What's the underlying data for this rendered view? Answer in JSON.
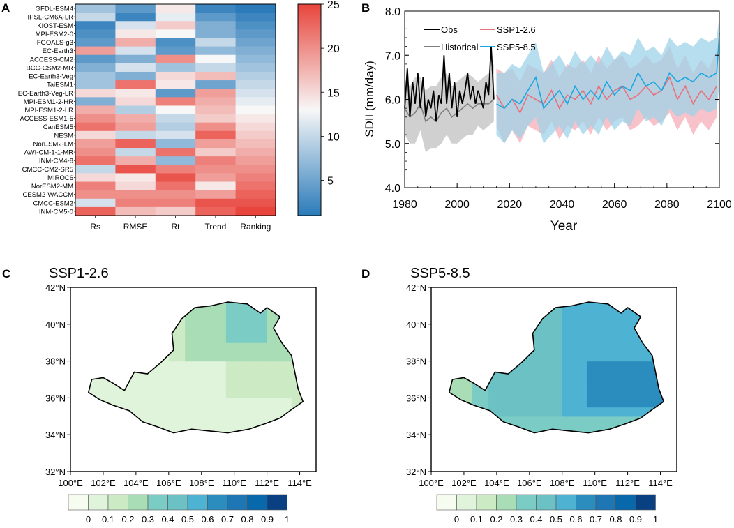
{
  "panels": {
    "A": {
      "letter": "A"
    },
    "B": {
      "letter": "B"
    },
    "C": {
      "letter": "C",
      "title": "SSP1-2.6"
    },
    "D": {
      "letter": "D",
      "title": "SSP5-8.5"
    }
  },
  "colors": {
    "heat_low": "#2b7bba",
    "heat_mid": "#f7f7f7",
    "heat_high": "#e8453c",
    "obs": "#000000",
    "historical": "#7f7f7f",
    "historical_band": "#c8c8c8",
    "ssp126": "#e9707a",
    "ssp126_band": "#f6b7c0",
    "ssp585": "#1aa7e0",
    "ssp585_band": "#9fd3e8",
    "map_scale": [
      "#f7fcf0",
      "#e0f3db",
      "#ccebc5",
      "#a8ddb5",
      "#7bccc4",
      "#6cc1c4",
      "#4eb3d3",
      "#2b8cbe",
      "#1f76b4",
      "#0868ac",
      "#084081"
    ]
  },
  "chart_data": [
    {
      "type": "heatmap",
      "panel": "A",
      "rows": [
        "GFDL-ESM4",
        "IPSL-CM6A-LR",
        "KIOST-ESM",
        "MPI-ESM2-0",
        "FGOALS-g3",
        "EC-Earth3",
        "ACCESS-CM2",
        "BCC-CSM2-MR",
        "EC-Earth3-Veg",
        "TaiESM1",
        "EC-Earth3-Veg-LR",
        "MPI-ESM1-2-HR",
        "MPI-ESM1-2-LR",
        "ACCESS-ESM1-5",
        "CanESM5",
        "NESM",
        "NorESM2-LM",
        "AWI-CM-1-1-MR",
        "INM-CM4-8",
        "CMCC-CM2-SR5",
        "MIROC6",
        "NorESM2-MM",
        "CESM2-WACCM",
        "CMCC-ESM2",
        "INM-CM5-0"
      ],
      "columns": [
        "Rs",
        "RMSE",
        "Rt",
        "Trend",
        "Ranking"
      ],
      "values": [
        [
          8,
          4,
          14,
          2,
          1
        ],
        [
          10,
          2,
          12,
          4,
          2
        ],
        [
          2,
          11,
          16,
          6,
          3
        ],
        [
          3,
          14,
          13,
          6,
          4
        ],
        [
          4,
          18,
          3,
          10,
          5
        ],
        [
          19,
          11,
          4,
          7,
          6
        ],
        [
          4,
          6,
          20,
          13,
          7
        ],
        [
          6,
          11,
          8,
          10,
          8
        ],
        [
          8,
          6,
          15,
          17,
          9
        ],
        [
          8,
          22,
          14,
          5,
          10
        ],
        [
          15,
          14,
          4,
          19,
          11
        ],
        [
          6,
          15,
          21,
          18,
          12
        ],
        [
          18,
          9,
          13,
          17,
          13
        ],
        [
          20,
          18,
          10,
          16,
          14
        ],
        [
          22,
          19,
          9,
          20,
          15
        ],
        [
          15,
          10,
          11,
          23,
          16
        ],
        [
          19,
          23,
          7,
          19,
          17
        ],
        [
          20,
          10,
          22,
          16,
          18
        ],
        [
          22,
          18,
          7,
          21,
          19
        ],
        [
          10,
          24,
          21,
          20,
          20
        ],
        [
          15,
          14,
          24,
          19,
          21
        ],
        [
          21,
          15,
          22,
          14,
          22
        ],
        [
          20,
          20,
          20,
          19,
          23
        ],
        [
          11,
          21,
          21,
          24,
          24
        ],
        [
          23,
          17,
          16,
          23,
          25
        ]
      ],
      "colorbar": {
        "min": 1,
        "max": 25,
        "ticks": [
          5,
          10,
          15,
          20,
          25
        ]
      }
    },
    {
      "type": "line",
      "panel": "B",
      "xlabel": "Year",
      "ylabel": "SDII (mm/day)",
      "xlim": [
        1980,
        2100
      ],
      "ylim": [
        4.0,
        8.0
      ],
      "xticks": [
        1980,
        2000,
        2020,
        2040,
        2060,
        2080,
        2100
      ],
      "yticks": [
        "4.0",
        "5.0",
        "6.0",
        "7.0",
        "8.0"
      ],
      "legend": [
        "Obs",
        "SSP1-2.6",
        "Historical",
        "SSP5-8.5"
      ],
      "series": [
        {
          "name": "Obs",
          "x": [
            1980,
            1981,
            1982,
            1983,
            1984,
            1985,
            1986,
            1987,
            1988,
            1989,
            1990,
            1991,
            1992,
            1993,
            1994,
            1995,
            1996,
            1997,
            1998,
            1999,
            2000,
            2001,
            2002,
            2003,
            2004,
            2005,
            2006,
            2007,
            2008,
            2009,
            2010,
            2011,
            2012,
            2013,
            2014
          ],
          "values": [
            5.8,
            6.7,
            5.6,
            6.4,
            5.9,
            6.6,
            5.8,
            6.5,
            5.6,
            6.0,
            5.8,
            6.2,
            5.5,
            6.1,
            5.9,
            7.0,
            5.9,
            6.6,
            5.8,
            6.4,
            5.6,
            6.2,
            5.9,
            6.2,
            6.6,
            6.0,
            6.3,
            5.9,
            6.2,
            6.0,
            5.8,
            6.4,
            6.1,
            7.2,
            6.0
          ]
        },
        {
          "name": "Historical",
          "x": [
            1980,
            1982,
            1984,
            1986,
            1988,
            1990,
            1992,
            1994,
            1996,
            1998,
            2000,
            2002,
            2004,
            2006,
            2008,
            2010,
            2012,
            2014
          ],
          "values": [
            5.8,
            5.6,
            5.7,
            5.9,
            5.5,
            5.6,
            5.5,
            5.7,
            5.8,
            5.6,
            5.7,
            5.8,
            5.9,
            5.8,
            5.9,
            5.9,
            5.9,
            6.0
          ],
          "lower": [
            5.2,
            5.0,
            5.0,
            5.3,
            4.8,
            4.9,
            4.9,
            5.0,
            5.2,
            5.0,
            5.0,
            5.1,
            5.2,
            5.2,
            5.4,
            5.3,
            5.4,
            5.5
          ],
          "upper": [
            6.4,
            6.3,
            6.5,
            6.5,
            6.2,
            6.3,
            6.3,
            6.5,
            6.6,
            6.3,
            6.4,
            6.5,
            6.6,
            6.5,
            6.4,
            6.5,
            6.6,
            6.8
          ]
        },
        {
          "name": "SSP1-2.6",
          "x": [
            2015,
            2018,
            2021,
            2024,
            2027,
            2030,
            2033,
            2036,
            2039,
            2042,
            2045,
            2048,
            2051,
            2054,
            2057,
            2060,
            2063,
            2066,
            2069,
            2072,
            2075,
            2078,
            2081,
            2084,
            2087,
            2090,
            2093,
            2096,
            2099
          ],
          "values": [
            6.1,
            5.8,
            6.0,
            5.7,
            6.1,
            6.0,
            5.9,
            6.2,
            5.8,
            6.1,
            6.0,
            6.2,
            5.9,
            6.3,
            6.0,
            6.2,
            6.3,
            6.0,
            6.1,
            6.3,
            6.1,
            6.2,
            6.5,
            6.0,
            6.3,
            5.9,
            6.2,
            6.0,
            6.3
          ],
          "lower": [
            5.4,
            5.0,
            5.3,
            5.0,
            5.4,
            5.3,
            5.2,
            5.5,
            5.1,
            5.4,
            5.3,
            5.5,
            5.2,
            5.6,
            5.3,
            5.5,
            5.6,
            5.3,
            5.4,
            5.6,
            5.4,
            5.5,
            5.7,
            5.3,
            5.6,
            5.2,
            5.5,
            5.3,
            5.6
          ],
          "upper": [
            6.7,
            6.6,
            6.7,
            6.4,
            6.8,
            6.7,
            6.6,
            6.9,
            6.5,
            6.8,
            6.7,
            6.9,
            6.6,
            7.0,
            6.7,
            6.9,
            7.0,
            6.7,
            6.8,
            7.0,
            6.8,
            6.9,
            7.2,
            6.7,
            7.0,
            6.6,
            6.9,
            6.7,
            7.1
          ]
        },
        {
          "name": "SSP5-8.5",
          "x": [
            2015,
            2018,
            2021,
            2024,
            2027,
            2030,
            2033,
            2036,
            2039,
            2042,
            2045,
            2048,
            2051,
            2054,
            2057,
            2060,
            2063,
            2066,
            2069,
            2072,
            2075,
            2078,
            2081,
            2084,
            2087,
            2090,
            2093,
            2096,
            2099,
            2100
          ],
          "values": [
            5.9,
            5.8,
            6.0,
            5.9,
            6.2,
            6.5,
            5.8,
            6.0,
            6.2,
            5.9,
            6.3,
            6.0,
            6.2,
            6.0,
            6.4,
            6.1,
            6.3,
            6.2,
            6.6,
            6.3,
            6.4,
            6.2,
            6.6,
            6.4,
            6.5,
            6.4,
            6.6,
            6.5,
            6.6,
            7.5
          ],
          "lower": [
            5.2,
            5.0,
            5.3,
            5.1,
            5.4,
            5.6,
            5.0,
            5.2,
            5.4,
            5.1,
            5.5,
            5.2,
            5.4,
            5.2,
            5.6,
            5.3,
            5.5,
            5.4,
            5.8,
            5.5,
            5.6,
            5.4,
            5.8,
            5.6,
            5.7,
            5.6,
            5.8,
            5.7,
            5.8,
            6.3
          ],
          "upper": [
            6.6,
            6.6,
            6.8,
            6.7,
            7.0,
            7.3,
            6.6,
            6.8,
            7.0,
            6.7,
            7.1,
            6.8,
            7.0,
            6.8,
            7.2,
            6.9,
            7.1,
            7.0,
            7.4,
            7.1,
            7.2,
            7.0,
            7.4,
            7.2,
            7.3,
            7.2,
            7.4,
            7.3,
            7.4,
            7.9
          ]
        }
      ]
    },
    {
      "type": "heatmap",
      "panel": "C",
      "title": "SSP1-2.6",
      "lon_ticks": [
        "100°E",
        "102°E",
        "104°E",
        "106°E",
        "108°E",
        "110°E",
        "112°E",
        "114°E"
      ],
      "lat_ticks": [
        "32°N",
        "34°N",
        "36°N",
        "38°N",
        "40°N",
        "42°N"
      ],
      "xlim": [
        100,
        115
      ],
      "ylim": [
        32,
        42
      ],
      "colorbar_labels": [
        "0",
        "0.1",
        "0.2",
        "0.3",
        "0.4",
        "0.5",
        "0.6",
        "0.7",
        "0.8",
        "0.9",
        "1"
      ],
      "regions": [
        {
          "value": 0.1,
          "area": "western and southern Loess Plateau"
        },
        {
          "value": 0.2,
          "area": "central Loess Plateau"
        },
        {
          "value": 0.3,
          "area": "northern and northeastern Loess Plateau"
        }
      ]
    },
    {
      "type": "heatmap",
      "panel": "D",
      "title": "SSP5-8.5",
      "lon_ticks": [
        "100°E",
        "102°E",
        "104°E",
        "106°E",
        "108°E",
        "110°E",
        "112°E",
        "114°E"
      ],
      "lat_ticks": [
        "32°N",
        "34°N",
        "36°N",
        "38°N",
        "40°N",
        "42°N"
      ],
      "xlim": [
        100,
        115
      ],
      "ylim": [
        32,
        42
      ],
      "colorbar_labels": [
        "0",
        "0.1",
        "0.2",
        "0.3",
        "0.4",
        "0.5",
        "0.6",
        "0.7",
        "0.8",
        "0.9",
        "1"
      ],
      "regions": [
        {
          "value": 0.3,
          "area": "western margin and southern edge"
        },
        {
          "value": 0.5,
          "area": "northwestern and central Loess Plateau"
        },
        {
          "value": 0.6,
          "area": "eastern Loess Plateau"
        },
        {
          "value": 0.7,
          "area": "southeastern core near 36°N 112°E"
        }
      ]
    }
  ]
}
